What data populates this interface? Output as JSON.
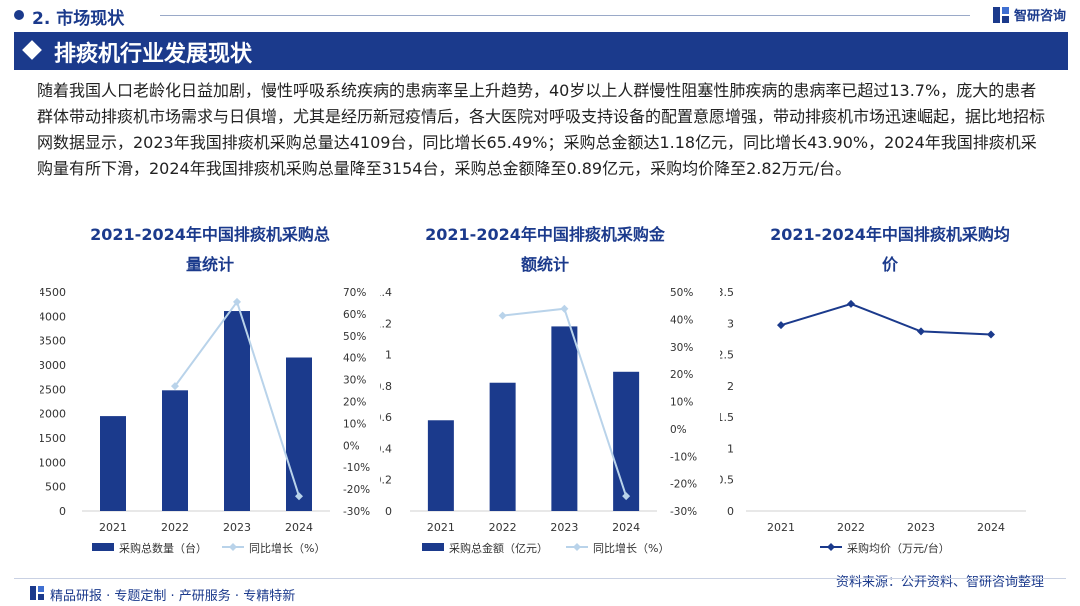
{
  "header": {
    "section": "2. 市场现状",
    "brand": "智研咨询"
  },
  "banner": {
    "title": "排痰机行业发展现状"
  },
  "paragraph": "随着我国人口老龄化日益加剧，慢性呼吸系统疾病的患病率呈上升趋势，40岁以上人群慢性阻塞性肺疾病的患病率已超过13.7%，庞大的患者群体带动排痰机市场需求与日俱增，尤其是经历新冠疫情后，各大医院对呼吸支持设备的配置意愿增强，带动排痰机市场迅速崛起，据比地招标网数据显示，2023年我国排痰机采购总量达4109台，同比增长65.49%；采购总金额达1.18亿元，同比增长43.90%，2024年我国排痰机采购量有所下滑，2024年我国排痰机采购总量降至3154台，采购总金额降至0.89亿元，采购均价降至2.82万元/台。",
  "chart_data": [
    {
      "type": "bar",
      "title_lines": [
        "2021-2024年中国排痰机采购总",
        "量统计"
      ],
      "categories": [
        "2021",
        "2022",
        "2023",
        "2024"
      ],
      "series": [
        {
          "name": "采购总数量（台）",
          "kind": "bar",
          "axis": "left",
          "values": [
            1950,
            2480,
            4109,
            3154
          ]
        },
        {
          "name": "同比增长（%）",
          "kind": "line",
          "axis": "right",
          "values": [
            null,
            27,
            65.49,
            -23.24
          ]
        }
      ],
      "y_left": {
        "min": 0,
        "max": 4500,
        "step": 500
      },
      "y_left_ticks": [
        "0",
        "500",
        "1000",
        "1500",
        "2000",
        "2500",
        "3000",
        "3500",
        "4000",
        "4500"
      ],
      "y_right": {
        "min": -30,
        "max": 70,
        "step": 10
      },
      "y_right_ticks": [
        "-30%",
        "-20%",
        "-10%",
        "0%",
        "10%",
        "20%",
        "30%",
        "40%",
        "50%",
        "60%",
        "70%"
      ],
      "legend": "bottom"
    },
    {
      "type": "bar",
      "title_lines": [
        "2021-2024年中国排痰机采购金",
        "额统计"
      ],
      "categories": [
        "2021",
        "2022",
        "2023",
        "2024"
      ],
      "series": [
        {
          "name": "采购总金额（亿元）",
          "kind": "bar",
          "axis": "left",
          "values": [
            0.58,
            0.82,
            1.18,
            0.89
          ]
        },
        {
          "name": "同比增长（%）",
          "kind": "line",
          "axis": "right",
          "values": [
            null,
            41.38,
            43.9,
            -24.58
          ]
        }
      ],
      "y_left": {
        "min": 0,
        "max": 1.4,
        "step": 0.2
      },
      "y_left_ticks": [
        "0",
        "0.2",
        "0.4",
        "0.6",
        "0.8",
        "1",
        "1.2",
        "1.4"
      ],
      "y_right": {
        "min": -30,
        "max": 50,
        "step": 10
      },
      "y_right_ticks": [
        "-30%",
        "-20%",
        "-10%",
        "0%",
        "10%",
        "20%",
        "30%",
        "40%",
        "50%"
      ],
      "legend": "bottom"
    },
    {
      "type": "line",
      "title_lines": [
        "2021-2024年中国排痰机采购均",
        "价"
      ],
      "categories": [
        "2021",
        "2022",
        "2023",
        "2024"
      ],
      "series": [
        {
          "name": "采购均价（万元/台）",
          "kind": "line",
          "axis": "left",
          "values": [
            2.97,
            3.31,
            2.87,
            2.82
          ]
        }
      ],
      "y_left": {
        "min": 0,
        "max": 3.5,
        "step": 0.5
      },
      "y_left_ticks": [
        "0",
        "0.5",
        "1",
        "1.5",
        "2",
        "2.5",
        "3",
        "3.5"
      ],
      "legend": "bottom"
    }
  ],
  "source": "资料来源：公开资料、智研咨询整理",
  "footer": "精品研报 · 专题定制 · 产研服务 · 专精特新",
  "colors": {
    "brand": "#1b3a8c",
    "bar": "#1b3a8c",
    "line_light": "#b9d3ea",
    "line_dark": "#1b3a8c",
    "axis_text": "#333333"
  }
}
